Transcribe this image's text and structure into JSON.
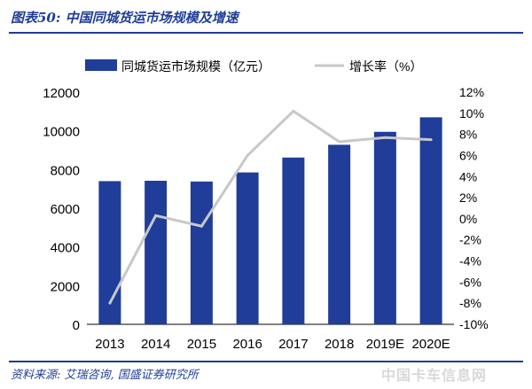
{
  "page": {
    "title": "图表50: 中国同城货运市场规模及增速",
    "source": "资料来源: 艾瑞咨询, 国盛证券研究所",
    "watermark": "中国卡车信息网"
  },
  "colors": {
    "bar": "#1f3d99",
    "line": "#c8c8c8",
    "text": "#000000",
    "brand": "#1f3d99"
  },
  "chart_data": {
    "type": "bar",
    "categories": [
      "2013",
      "2014",
      "2015",
      "2016",
      "2017",
      "2018",
      "2019E",
      "2020E"
    ],
    "series": [
      {
        "name": "同城货运市场规模（亿元）",
        "type": "bar",
        "axis": "left",
        "values": [
          7400,
          7420,
          7380,
          7850,
          8620,
          9280,
          9950,
          10700
        ]
      },
      {
        "name": "增长率（%）",
        "type": "line",
        "axis": "right",
        "values": [
          -8.0,
          0.3,
          -0.7,
          6.0,
          10.2,
          7.3,
          7.7,
          7.5
        ]
      }
    ],
    "yleft": {
      "min": 0,
      "max": 12000,
      "ticks": [
        0,
        2000,
        4000,
        6000,
        8000,
        10000,
        12000
      ]
    },
    "yright": {
      "min": -10,
      "max": 12,
      "ticks": [
        "-10%",
        "-8%",
        "-6%",
        "-4%",
        "-2%",
        "0%",
        "2%",
        "4%",
        "6%",
        "8%",
        "10%",
        "12%"
      ]
    },
    "legend_position": "top",
    "grid": false
  }
}
